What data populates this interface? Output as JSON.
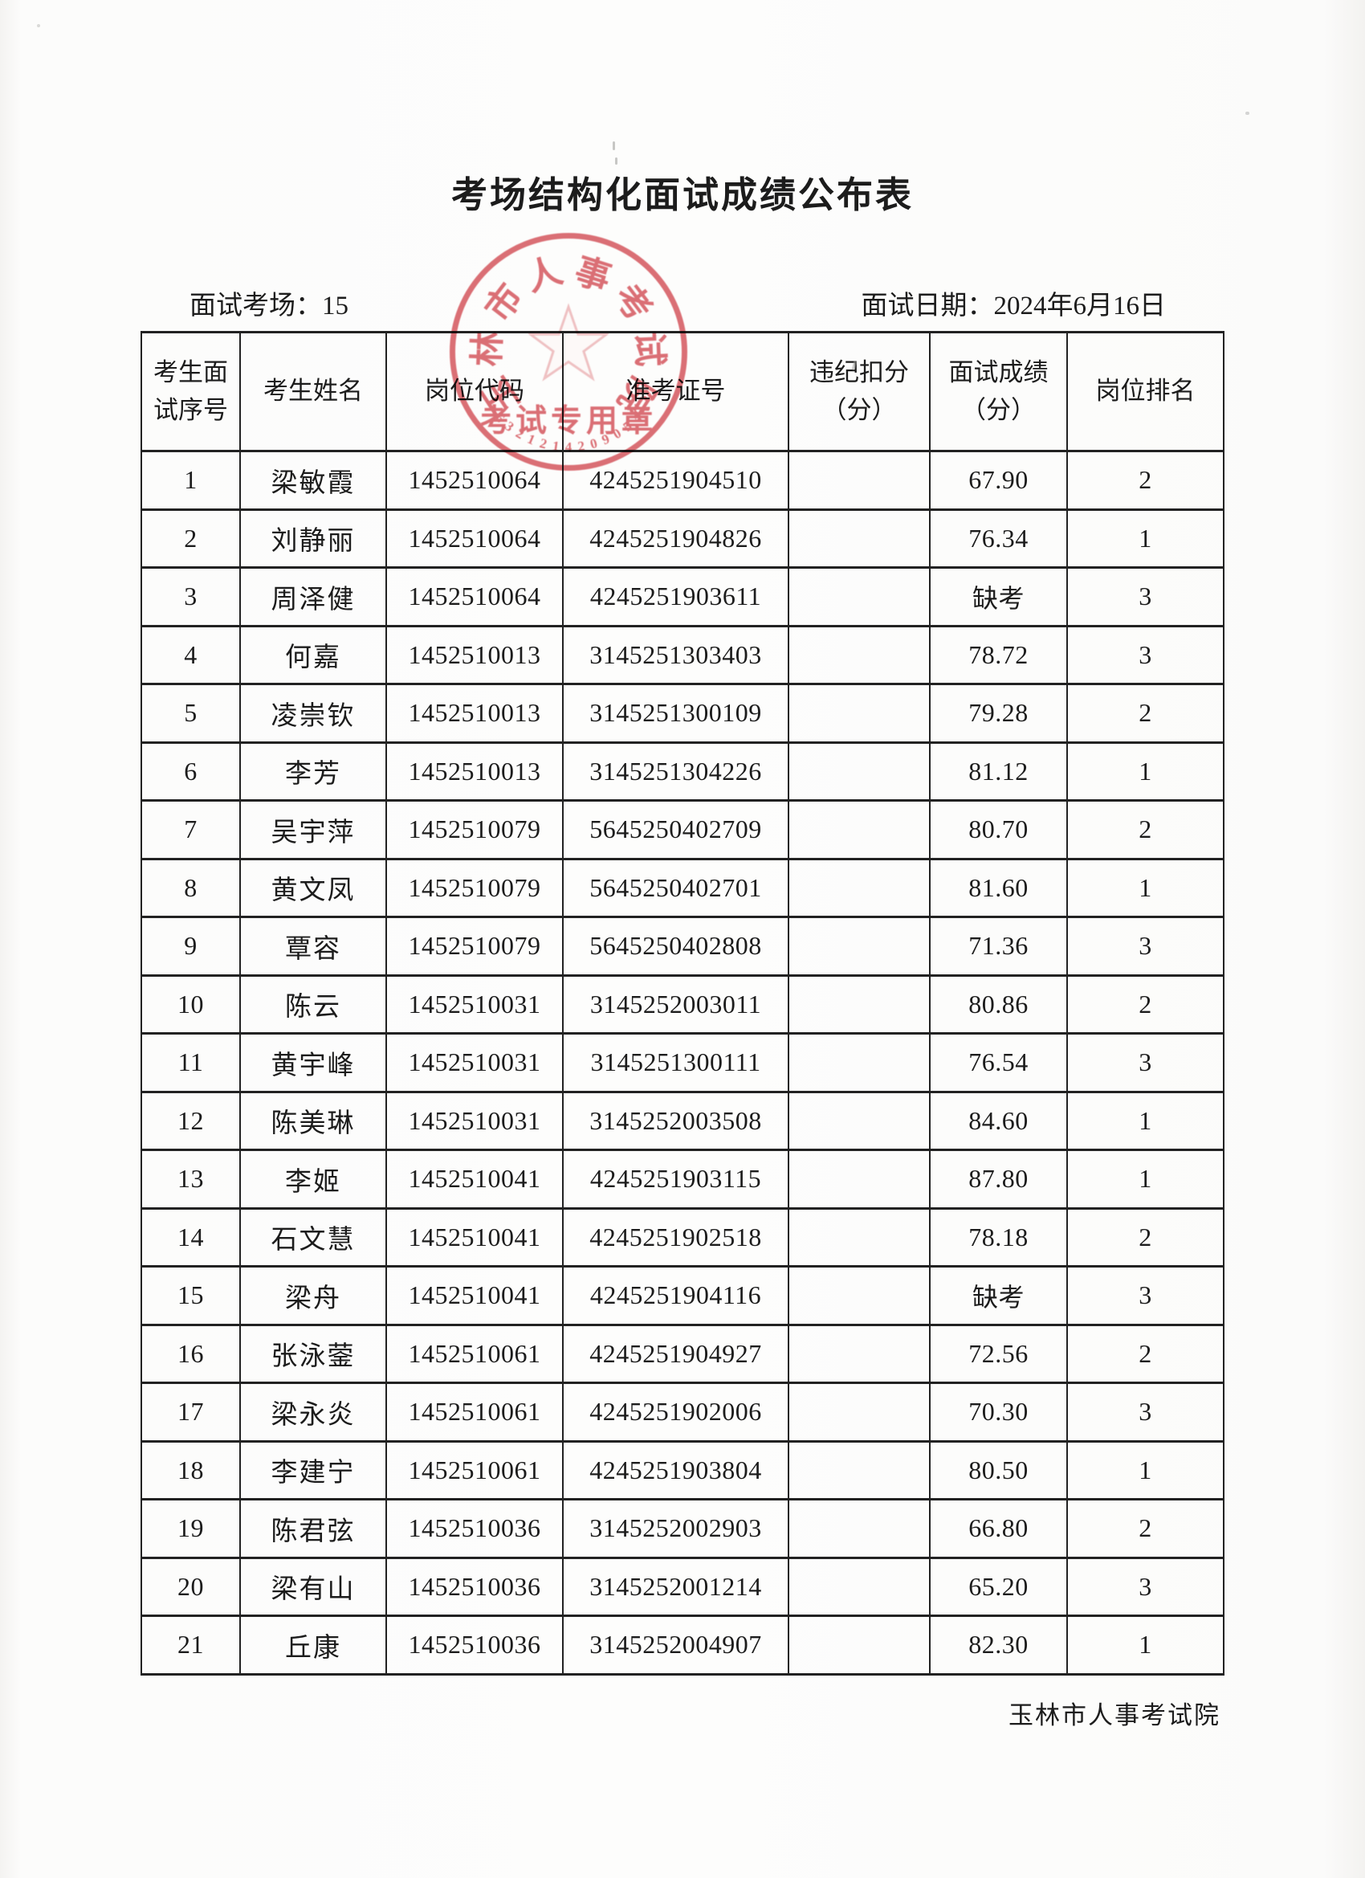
{
  "page": {
    "title": "考场结构化面试成绩公布表",
    "room_label": "面试考场：",
    "room_value": "15",
    "date_label": "面试日期：",
    "date_value": "2024年6月16日",
    "footer": "玉林市人事考试院"
  },
  "seal": {
    "ring_text": "玉林市人事考试院",
    "banner_text": "考试专用章",
    "serial_number": "4509024121236",
    "color": "#d6545c"
  },
  "table": {
    "headers": [
      "考生面\n试序号",
      "考生姓名",
      "岗位代码",
      "准考证号",
      "违纪扣分\n（分）",
      "面试成绩\n（分）",
      "岗位排名"
    ],
    "rows": [
      {
        "seq": "1",
        "name": "梁敏霞",
        "post_code": "1452510064",
        "ticket_no": "4245251904510",
        "deduction": "",
        "score": "67.90",
        "rank": "2"
      },
      {
        "seq": "2",
        "name": "刘静丽",
        "post_code": "1452510064",
        "ticket_no": "4245251904826",
        "deduction": "",
        "score": "76.34",
        "rank": "1"
      },
      {
        "seq": "3",
        "name": "周泽健",
        "post_code": "1452510064",
        "ticket_no": "4245251903611",
        "deduction": "",
        "score": "缺考",
        "rank": "3"
      },
      {
        "seq": "4",
        "name": "何嘉",
        "post_code": "1452510013",
        "ticket_no": "3145251303403",
        "deduction": "",
        "score": "78.72",
        "rank": "3"
      },
      {
        "seq": "5",
        "name": "凌崇钦",
        "post_code": "1452510013",
        "ticket_no": "3145251300109",
        "deduction": "",
        "score": "79.28",
        "rank": "2"
      },
      {
        "seq": "6",
        "name": "李芳",
        "post_code": "1452510013",
        "ticket_no": "3145251304226",
        "deduction": "",
        "score": "81.12",
        "rank": "1"
      },
      {
        "seq": "7",
        "name": "吴宇萍",
        "post_code": "1452510079",
        "ticket_no": "5645250402709",
        "deduction": "",
        "score": "80.70",
        "rank": "2"
      },
      {
        "seq": "8",
        "name": "黄文凤",
        "post_code": "1452510079",
        "ticket_no": "5645250402701",
        "deduction": "",
        "score": "81.60",
        "rank": "1"
      },
      {
        "seq": "9",
        "name": "覃容",
        "post_code": "1452510079",
        "ticket_no": "5645250402808",
        "deduction": "",
        "score": "71.36",
        "rank": "3"
      },
      {
        "seq": "10",
        "name": "陈云",
        "post_code": "1452510031",
        "ticket_no": "3145252003011",
        "deduction": "",
        "score": "80.86",
        "rank": "2"
      },
      {
        "seq": "11",
        "name": "黄宇峰",
        "post_code": "1452510031",
        "ticket_no": "3145251300111",
        "deduction": "",
        "score": "76.54",
        "rank": "3"
      },
      {
        "seq": "12",
        "name": "陈美琳",
        "post_code": "1452510031",
        "ticket_no": "3145252003508",
        "deduction": "",
        "score": "84.60",
        "rank": "1"
      },
      {
        "seq": "13",
        "name": "李姬",
        "post_code": "1452510041",
        "ticket_no": "4245251903115",
        "deduction": "",
        "score": "87.80",
        "rank": "1"
      },
      {
        "seq": "14",
        "name": "石文慧",
        "post_code": "1452510041",
        "ticket_no": "4245251902518",
        "deduction": "",
        "score": "78.18",
        "rank": "2"
      },
      {
        "seq": "15",
        "name": "梁舟",
        "post_code": "1452510041",
        "ticket_no": "4245251904116",
        "deduction": "",
        "score": "缺考",
        "rank": "3"
      },
      {
        "seq": "16",
        "name": "张泳蓥",
        "post_code": "1452510061",
        "ticket_no": "4245251904927",
        "deduction": "",
        "score": "72.56",
        "rank": "2"
      },
      {
        "seq": "17",
        "name": "梁永炎",
        "post_code": "1452510061",
        "ticket_no": "4245251902006",
        "deduction": "",
        "score": "70.30",
        "rank": "3"
      },
      {
        "seq": "18",
        "name": "李建宁",
        "post_code": "1452510061",
        "ticket_no": "4245251903804",
        "deduction": "",
        "score": "80.50",
        "rank": "1"
      },
      {
        "seq": "19",
        "name": "陈君弦",
        "post_code": "1452510036",
        "ticket_no": "3145252002903",
        "deduction": "",
        "score": "66.80",
        "rank": "2"
      },
      {
        "seq": "20",
        "name": "梁有山",
        "post_code": "1452510036",
        "ticket_no": "3145252001214",
        "deduction": "",
        "score": "65.20",
        "rank": "3"
      },
      {
        "seq": "21",
        "name": "丘康",
        "post_code": "1452510036",
        "ticket_no": "3145252004907",
        "deduction": "",
        "score": "82.30",
        "rank": "1"
      }
    ]
  }
}
